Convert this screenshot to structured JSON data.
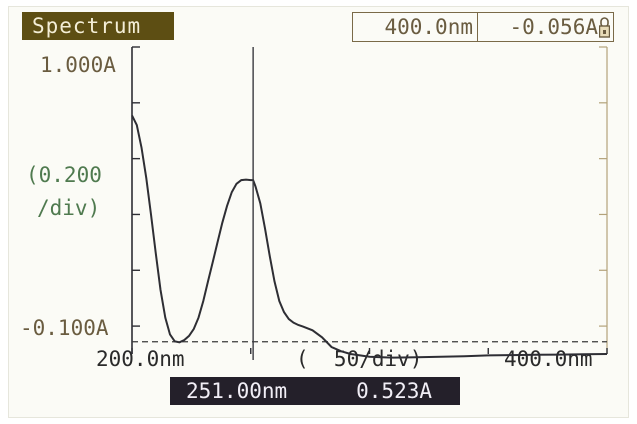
{
  "header": {
    "mode_title": "Spectrum",
    "status_wavelength": "400.0nm",
    "status_absorbance": "-0.056A"
  },
  "y_axis": {
    "max_label": "1.000A",
    "scale_line1": "(0.200",
    "scale_line2": "/div)",
    "min_label": "-0.100A"
  },
  "x_axis": {
    "min_label": "200.0nm",
    "scale_label": "(  50/div)",
    "max_label": "400.0nm"
  },
  "cursor_readout": {
    "wavelength": "251.00nm",
    "absorbance": "0.523A"
  },
  "colors": {
    "title_bg": "#5d4e13",
    "axis_brown": "#6a5c40",
    "scale_green": "#4f7a4f",
    "readout_bg": "#24202a"
  },
  "chart_data": {
    "type": "line",
    "xlim": [
      200,
      400
    ],
    "ylim": [
      -0.1,
      1.0
    ],
    "cursor_x": 251,
    "baseline_y": -0.056,
    "series": [
      {
        "x": [
          200,
          202,
          204,
          206,
          208,
          210,
          212,
          214,
          216,
          218,
          220,
          222,
          224,
          226,
          228,
          230,
          232,
          234,
          236,
          238,
          240,
          242,
          244,
          246,
          248,
          250,
          251,
          252,
          254,
          256,
          258,
          260,
          262,
          264,
          266,
          268,
          270,
          272,
          276,
          280,
          284,
          288,
          292,
          296,
          300,
          305,
          310,
          320,
          330,
          340,
          350,
          360,
          370,
          380,
          390,
          400
        ],
        "y": [
          0.755,
          0.72,
          0.64,
          0.53,
          0.4,
          0.26,
          0.13,
          0.03,
          -0.03,
          -0.055,
          -0.058,
          -0.05,
          -0.035,
          -0.01,
          0.03,
          0.09,
          0.16,
          0.23,
          0.3,
          0.37,
          0.43,
          0.48,
          0.51,
          0.523,
          0.525,
          0.523,
          0.523,
          0.5,
          0.44,
          0.35,
          0.25,
          0.16,
          0.09,
          0.05,
          0.025,
          0.012,
          0.004,
          -0.002,
          -0.015,
          -0.04,
          -0.075,
          -0.09,
          -0.1,
          -0.105,
          -0.11,
          -0.112,
          -0.113,
          -0.112,
          -0.11,
          -0.108,
          -0.105,
          -0.104,
          -0.103,
          -0.102,
          -0.101,
          -0.1
        ]
      }
    ]
  }
}
